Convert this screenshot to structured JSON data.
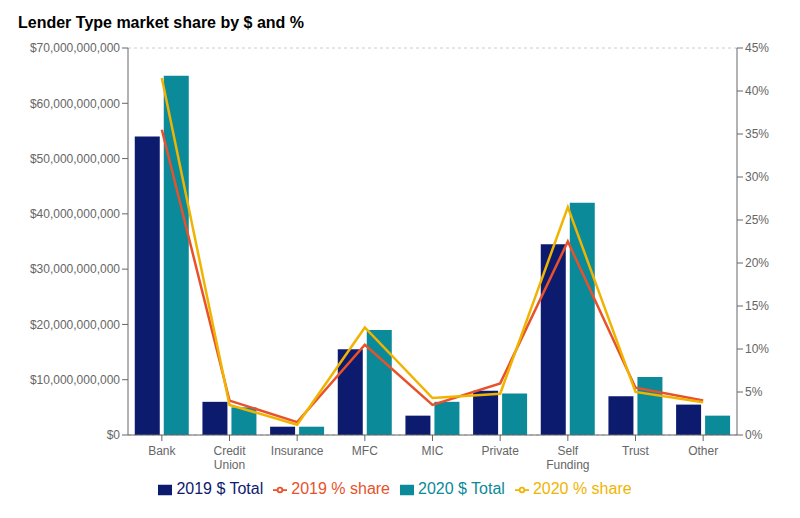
{
  "chart_data": {
    "type": "bar",
    "title": "Lender Type market share by $ and %",
    "categories": [
      "Bank",
      "Credit\nUnion",
      "Insurance",
      "MFC",
      "MIC",
      "Private",
      "Self\nFunding",
      "Trust",
      "Other"
    ],
    "series": [
      {
        "name": "2019 $ Total",
        "type": "bar",
        "color": "#0d1b6e",
        "values": [
          54000000000,
          6000000000,
          1500000000,
          15500000000,
          3500000000,
          8000000000,
          34500000000,
          7000000000,
          5500000000
        ]
      },
      {
        "name": "2020 $ Total",
        "type": "bar",
        "color": "#0b8a9a",
        "values": [
          65000000000,
          5000000000,
          1500000000,
          19000000000,
          6000000000,
          7500000000,
          42000000000,
          10500000000,
          3500000000
        ]
      },
      {
        "name": "2019 % share",
        "type": "line",
        "axis": "y2",
        "color": "#e8522a",
        "values": [
          0.355,
          0.04,
          0.015,
          0.105,
          0.035,
          0.06,
          0.225,
          0.055,
          0.04
        ]
      },
      {
        "name": "2020 % share",
        "type": "line",
        "axis": "y2",
        "color": "#f0b400",
        "values": [
          0.415,
          0.035,
          0.012,
          0.125,
          0.043,
          0.048,
          0.265,
          0.05,
          0.038
        ]
      }
    ],
    "ylim": [
      0,
      70000000000
    ],
    "yticks": [
      {
        "value": 0,
        "label": "$0"
      },
      {
        "value": 10000000000,
        "label": "$10,000,000,000"
      },
      {
        "value": 20000000000,
        "label": "$20,000,000,000"
      },
      {
        "value": 30000000000,
        "label": "$30,000,000,000"
      },
      {
        "value": 40000000000,
        "label": "$40,000,000,000"
      },
      {
        "value": 50000000000,
        "label": "$50,000,000,000"
      },
      {
        "value": 60000000000,
        "label": "$60,000,000,000"
      },
      {
        "value": 70000000000,
        "label": "$70,000,000,000"
      }
    ],
    "y2lim": [
      0,
      0.45
    ],
    "y2ticks": [
      {
        "value": 0,
        "label": "0%"
      },
      {
        "value": 0.05,
        "label": "5%"
      },
      {
        "value": 0.1,
        "label": "10%"
      },
      {
        "value": 0.15,
        "label": "15%"
      },
      {
        "value": 0.2,
        "label": "20%"
      },
      {
        "value": 0.25,
        "label": "25%"
      },
      {
        "value": 0.3,
        "label": "30%"
      },
      {
        "value": 0.35,
        "label": "35%"
      },
      {
        "value": 0.4,
        "label": "40%"
      },
      {
        "value": 0.45,
        "label": "45%"
      }
    ],
    "grid": true,
    "legend": "bottom"
  }
}
